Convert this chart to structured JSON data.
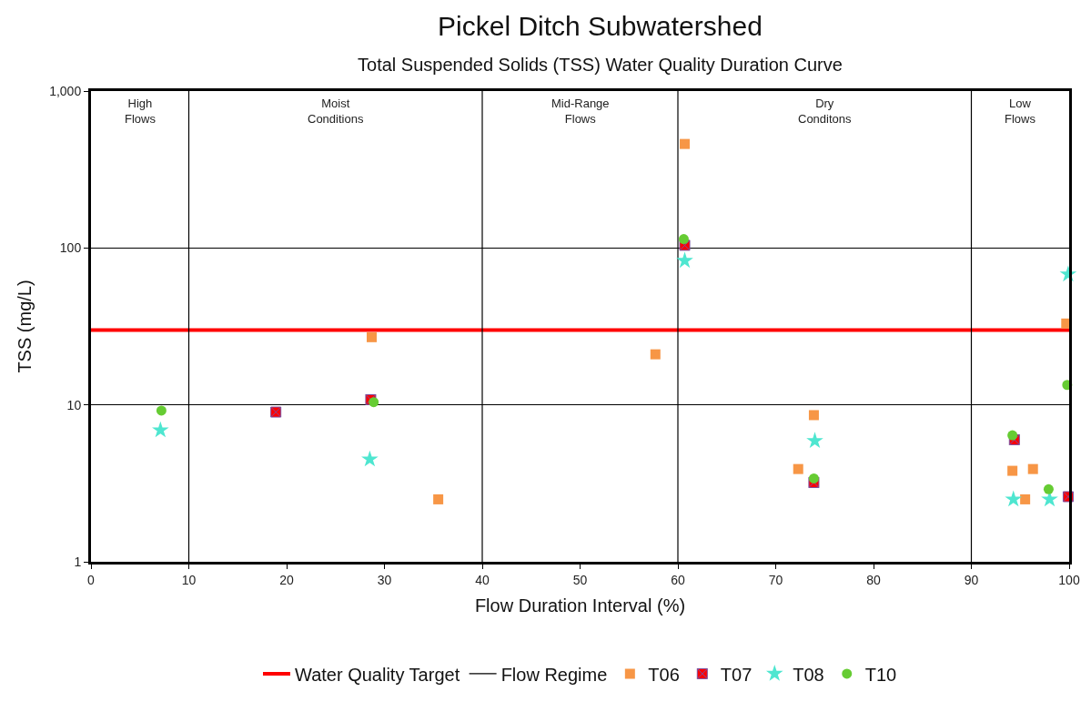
{
  "chart_data": {
    "type": "scatter",
    "title": "Pickel Ditch Subwatershed",
    "subtitle": "Total Suspended Solids (TSS) Water Quality Duration Curve",
    "xlabel": "Flow Duration Interval (%)",
    "ylabel": "TSS (mg/L)",
    "xlim": [
      0,
      100
    ],
    "xticks": [
      0,
      10,
      20,
      30,
      40,
      50,
      60,
      70,
      80,
      90,
      100
    ],
    "ylim": [
      1,
      1000
    ],
    "yticks": [
      1,
      10,
      100,
      {
        "value": 1000,
        "label": "1,000"
      }
    ],
    "log": "y",
    "grid": "y",
    "legend": "bottom",
    "series": [
      {
        "name": "T06",
        "color": "#f79646",
        "marker": "square",
        "x": [
          28.7,
          35.5,
          57.7,
          60.7,
          72.3,
          73.9,
          94.2,
          95.5,
          96.3,
          99.7
        ],
        "values": [
          27,
          2.5,
          21,
          460,
          3.9,
          8.6,
          3.8,
          2.5,
          3.9,
          33
        ]
      },
      {
        "name": "T07",
        "color": "#ff0000",
        "marker": "cross",
        "x": [
          18.9,
          28.6,
          60.7,
          73.9,
          94.4,
          99.9
        ],
        "values": [
          9.0,
          10.8,
          104,
          3.2,
          6.0,
          2.6
        ]
      },
      {
        "name": "T08",
        "color": "#4ee6d0",
        "marker": "star",
        "x": [
          7.1,
          28.5,
          60.7,
          74.0,
          94.3,
          98.0,
          99.9
        ],
        "values": [
          6.9,
          4.5,
          83,
          5.9,
          2.5,
          2.5,
          68
        ]
      },
      {
        "name": "T10",
        "color": "#66cc33",
        "marker": "circle",
        "x": [
          7.2,
          28.9,
          60.6,
          73.9,
          94.2,
          97.9,
          99.8
        ],
        "values": [
          9.2,
          10.4,
          114,
          3.4,
          6.4,
          2.9,
          13.4
        ]
      }
    ],
    "ref_lines": [
      {
        "axis": "y",
        "value": 30,
        "label": "Water Quality Target",
        "color": "#ff0000",
        "line_style": "solid"
      },
      {
        "axis": "x",
        "value": 10,
        "label": "Flow Regime",
        "color": "#000000",
        "line_style": "solid"
      },
      {
        "axis": "x",
        "value": 40,
        "color": "#000000",
        "line_style": "solid"
      },
      {
        "axis": "x",
        "value": 60,
        "color": "#000000",
        "line_style": "solid"
      },
      {
        "axis": "x",
        "value": 90,
        "color": "#000000",
        "line_style": "solid"
      }
    ],
    "annotations": [
      "High\nFlows",
      "Moist\nConditions",
      "Mid-Range\nFlows",
      "Dry\nConditons",
      "Low\nFlows"
    ]
  }
}
